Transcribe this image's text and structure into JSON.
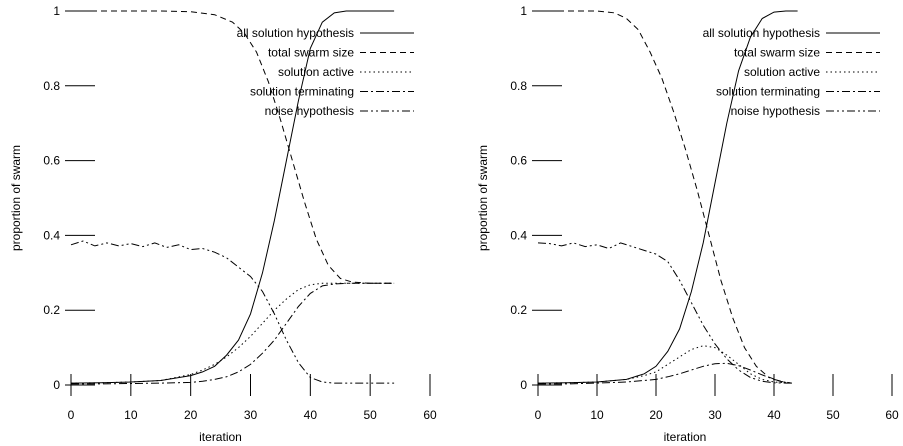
{
  "chart_data": [
    {
      "type": "line",
      "title": "",
      "xlabel": "iteration",
      "ylabel": "proportion of swarm",
      "xlim": [
        0,
        60
      ],
      "ylim": [
        0,
        1
      ],
      "xticks": [
        0,
        10,
        20,
        30,
        40,
        50,
        60
      ],
      "xtick_labels": [
        "0",
        "10",
        "20",
        "30",
        "40",
        "50",
        "60"
      ],
      "yticks": [
        0,
        0.2,
        0.4,
        0.6,
        0.8,
        1
      ],
      "ytick_labels": [
        "0",
        "0.2",
        "0.4",
        "0.6",
        "0.8",
        "1"
      ],
      "grid": false,
      "legend": "top-right",
      "series": [
        {
          "name": "all solution hypothesis",
          "dash": "solid",
          "x": [
            0,
            5,
            10,
            15,
            20,
            22,
            24,
            26,
            28,
            30,
            32,
            34,
            36,
            38,
            40,
            42,
            44,
            46,
            50,
            54
          ],
          "y": [
            0.005,
            0.006,
            0.008,
            0.012,
            0.025,
            0.035,
            0.05,
            0.08,
            0.12,
            0.19,
            0.3,
            0.44,
            0.6,
            0.76,
            0.9,
            0.97,
            0.995,
            1.0,
            1.0,
            1.0
          ]
        },
        {
          "name": "total swarm size",
          "dash": "dashed",
          "x": [
            0,
            5,
            10,
            15,
            20,
            24,
            27,
            29,
            31,
            33,
            35,
            37,
            39,
            41,
            43,
            45,
            47,
            50,
            54
          ],
          "y": [
            1.0,
            1.0,
            1.0,
            1.0,
            0.998,
            0.99,
            0.97,
            0.94,
            0.89,
            0.81,
            0.71,
            0.6,
            0.49,
            0.39,
            0.32,
            0.285,
            0.275,
            0.272,
            0.272
          ]
        },
        {
          "name": "solution active",
          "dash": "dotted",
          "x": [
            0,
            5,
            10,
            15,
            20,
            22,
            24,
            26,
            28,
            30,
            32,
            34,
            36,
            38,
            40,
            42,
            44,
            46,
            50,
            54
          ],
          "y": [
            0.005,
            0.006,
            0.008,
            0.012,
            0.028,
            0.04,
            0.055,
            0.075,
            0.1,
            0.13,
            0.165,
            0.2,
            0.23,
            0.255,
            0.268,
            0.272,
            0.272,
            0.272,
            0.272,
            0.272
          ]
        },
        {
          "name": "solution terminating",
          "dash": "dashdot",
          "x": [
            0,
            5,
            10,
            15,
            20,
            22,
            24,
            26,
            28,
            30,
            32,
            34,
            36,
            38,
            40,
            42,
            44,
            46,
            50,
            54
          ],
          "y": [
            0.003,
            0.003,
            0.004,
            0.005,
            0.007,
            0.01,
            0.015,
            0.022,
            0.035,
            0.055,
            0.085,
            0.12,
            0.165,
            0.21,
            0.245,
            0.265,
            0.27,
            0.272,
            0.272,
            0.272
          ]
        },
        {
          "name": "noise hypothesis",
          "dash": "dashdotdot",
          "x": [
            0,
            2,
            4,
            6,
            8,
            10,
            12,
            14,
            16,
            18,
            20,
            22,
            24,
            26,
            28,
            30,
            32,
            34,
            36,
            38,
            40,
            42,
            44,
            46,
            50,
            54
          ],
          "y": [
            0.375,
            0.385,
            0.372,
            0.38,
            0.372,
            0.378,
            0.37,
            0.38,
            0.368,
            0.375,
            0.362,
            0.365,
            0.355,
            0.34,
            0.315,
            0.29,
            0.25,
            0.19,
            0.12,
            0.06,
            0.02,
            0.008,
            0.005,
            0.005,
            0.005,
            0.005
          ]
        }
      ]
    },
    {
      "type": "line",
      "title": "",
      "xlabel": "iteration",
      "ylabel": "proportion of swarm",
      "xlim": [
        0,
        60
      ],
      "ylim": [
        0,
        1
      ],
      "xticks": [
        0,
        10,
        20,
        30,
        40,
        50,
        60
      ],
      "xtick_labels": [
        "0",
        "10",
        "20",
        "30",
        "40",
        "50",
        "60"
      ],
      "yticks": [
        0,
        0.2,
        0.4,
        0.6,
        0.8,
        1
      ],
      "ytick_labels": [
        "0",
        "0.2",
        "0.4",
        "0.6",
        "0.8",
        "1"
      ],
      "grid": false,
      "legend": "top-right",
      "series": [
        {
          "name": "all solution hypothesis",
          "dash": "solid",
          "x": [
            0,
            5,
            10,
            15,
            18,
            20,
            22,
            24,
            26,
            28,
            30,
            32,
            34,
            36,
            38,
            40,
            42,
            44
          ],
          "y": [
            0.005,
            0.006,
            0.008,
            0.015,
            0.03,
            0.05,
            0.09,
            0.15,
            0.25,
            0.38,
            0.54,
            0.7,
            0.84,
            0.93,
            0.98,
            0.997,
            1.0,
            1.0
          ]
        },
        {
          "name": "total swarm size",
          "dash": "dashed",
          "x": [
            0,
            5,
            10,
            13,
            15,
            17,
            19,
            21,
            23,
            25,
            27,
            29,
            31,
            33,
            35,
            37,
            39,
            41,
            43
          ],
          "y": [
            1.0,
            1.0,
            1.0,
            0.995,
            0.98,
            0.95,
            0.89,
            0.82,
            0.73,
            0.63,
            0.52,
            0.4,
            0.28,
            0.18,
            0.1,
            0.05,
            0.022,
            0.01,
            0.005
          ]
        },
        {
          "name": "solution active",
          "dash": "dotted",
          "x": [
            0,
            5,
            10,
            15,
            18,
            20,
            22,
            24,
            26,
            28,
            30,
            32,
            34,
            36,
            38,
            40,
            42,
            43
          ],
          "y": [
            0.005,
            0.006,
            0.008,
            0.015,
            0.025,
            0.035,
            0.055,
            0.075,
            0.095,
            0.105,
            0.1,
            0.08,
            0.055,
            0.03,
            0.015,
            0.008,
            0.006,
            0.005
          ]
        },
        {
          "name": "solution terminating",
          "dash": "dashdot",
          "x": [
            0,
            5,
            10,
            15,
            20,
            22,
            24,
            26,
            28,
            30,
            32,
            34,
            36,
            38,
            40,
            42,
            43
          ],
          "y": [
            0.003,
            0.003,
            0.005,
            0.008,
            0.015,
            0.022,
            0.03,
            0.04,
            0.05,
            0.057,
            0.058,
            0.052,
            0.04,
            0.027,
            0.015,
            0.007,
            0.005
          ]
        },
        {
          "name": "noise hypothesis",
          "dash": "dashdotdot",
          "x": [
            0,
            2,
            4,
            6,
            8,
            10,
            12,
            14,
            16,
            18,
            20,
            22,
            24,
            26,
            28,
            30,
            32,
            34,
            36,
            38,
            40,
            42,
            43
          ],
          "y": [
            0.38,
            0.378,
            0.372,
            0.38,
            0.37,
            0.375,
            0.365,
            0.38,
            0.37,
            0.36,
            0.35,
            0.33,
            0.28,
            0.22,
            0.16,
            0.11,
            0.07,
            0.04,
            0.02,
            0.01,
            0.006,
            0.005,
            0.005
          ]
        }
      ]
    }
  ]
}
